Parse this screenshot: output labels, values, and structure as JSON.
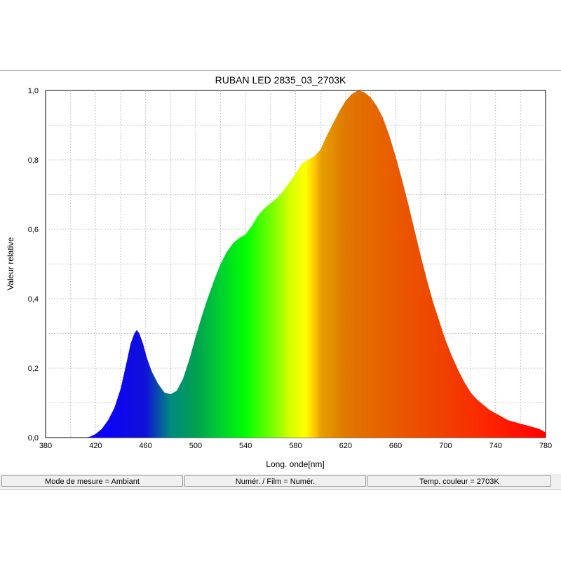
{
  "status_bar": {
    "items": [
      "Mode de mesure = Ambiant",
      "Numér. / Film = Numér.",
      "Temp. couleur = 2703K"
    ]
  },
  "chart_data": {
    "type": "area",
    "title": "RUBAN LED 2835_03_2703K",
    "xlabel": "Long. onde[nm]",
    "ylabel": "Valeur relative",
    "xlim": [
      380,
      780
    ],
    "ylim": [
      0,
      1.0
    ],
    "x_ticks": [
      "380",
      "420",
      "460",
      "500",
      "540",
      "580",
      "620",
      "660",
      "700",
      "740",
      "780"
    ],
    "y_ticks": [
      "0,0",
      "0,2",
      "0,4",
      "0,6",
      "0,8",
      "1,0"
    ],
    "grid": true,
    "fill": "spectral rainbow",
    "series": [
      {
        "x": [
          380,
          410,
          415,
          420,
          425,
          430,
          435,
          440,
          445,
          448,
          451,
          453,
          455,
          458,
          461,
          465,
          470,
          475,
          480,
          485,
          490,
          495,
          500,
          505,
          510,
          515,
          520,
          525,
          530,
          535,
          540,
          545,
          550,
          555,
          560,
          565,
          570,
          575,
          580,
          585,
          590,
          595,
          600,
          605,
          610,
          615,
          620,
          625,
          630,
          635,
          640,
          645,
          650,
          655,
          660,
          665,
          670,
          675,
          680,
          685,
          690,
          695,
          700,
          705,
          710,
          715,
          720,
          725,
          730,
          735,
          740,
          745,
          750,
          755,
          760,
          765,
          770,
          775,
          780
        ],
        "y": [
          0.0,
          0.0,
          0.002,
          0.01,
          0.025,
          0.05,
          0.085,
          0.14,
          0.22,
          0.27,
          0.3,
          0.31,
          0.3,
          0.27,
          0.23,
          0.19,
          0.155,
          0.13,
          0.125,
          0.135,
          0.17,
          0.225,
          0.29,
          0.35,
          0.405,
          0.455,
          0.5,
          0.535,
          0.56,
          0.575,
          0.585,
          0.61,
          0.64,
          0.66,
          0.675,
          0.69,
          0.71,
          0.735,
          0.76,
          0.79,
          0.8,
          0.81,
          0.83,
          0.87,
          0.905,
          0.94,
          0.97,
          0.99,
          1.0,
          0.995,
          0.98,
          0.955,
          0.92,
          0.87,
          0.81,
          0.745,
          0.675,
          0.6,
          0.525,
          0.455,
          0.39,
          0.335,
          0.28,
          0.235,
          0.195,
          0.16,
          0.13,
          0.11,
          0.095,
          0.08,
          0.07,
          0.06,
          0.05,
          0.045,
          0.04,
          0.035,
          0.03,
          0.025,
          0.015
        ]
      }
    ]
  }
}
